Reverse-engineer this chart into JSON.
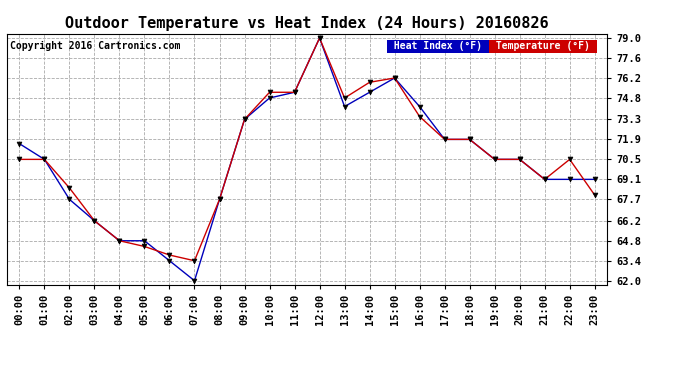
{
  "title": "Outdoor Temperature vs Heat Index (24 Hours) 20160826",
  "copyright": "Copyright 2016 Cartronics.com",
  "hours": [
    "00:00",
    "01:00",
    "02:00",
    "03:00",
    "04:00",
    "05:00",
    "06:00",
    "07:00",
    "08:00",
    "09:00",
    "10:00",
    "11:00",
    "12:00",
    "13:00",
    "14:00",
    "15:00",
    "16:00",
    "17:00",
    "18:00",
    "19:00",
    "20:00",
    "21:00",
    "22:00",
    "23:00"
  ],
  "heat_index": [
    71.6,
    70.5,
    67.7,
    66.2,
    64.8,
    64.8,
    63.4,
    62.0,
    67.7,
    73.3,
    74.8,
    75.2,
    79.0,
    74.2,
    75.2,
    76.2,
    74.2,
    71.9,
    71.9,
    70.5,
    70.5,
    69.1,
    69.1,
    69.1
  ],
  "temperature": [
    70.5,
    70.5,
    68.5,
    66.2,
    64.8,
    64.4,
    63.8,
    63.4,
    67.7,
    73.3,
    75.2,
    75.2,
    79.0,
    74.8,
    75.9,
    76.2,
    73.5,
    71.9,
    71.9,
    70.5,
    70.5,
    69.1,
    70.5,
    68.0
  ],
  "ylim_min": 62.0,
  "ylim_max": 79.0,
  "yticks": [
    62.0,
    63.4,
    64.8,
    66.2,
    67.7,
    69.1,
    70.5,
    71.9,
    73.3,
    74.8,
    76.2,
    77.6,
    79.0
  ],
  "heat_index_color": "#0000bb",
  "temperature_color": "#cc0000",
  "background_color": "#ffffff",
  "grid_color": "#aaaaaa",
  "title_fontsize": 11,
  "tick_fontsize": 7.5,
  "copyright_fontsize": 7,
  "legend_heat_bg": "#0000bb",
  "legend_temp_bg": "#cc0000"
}
